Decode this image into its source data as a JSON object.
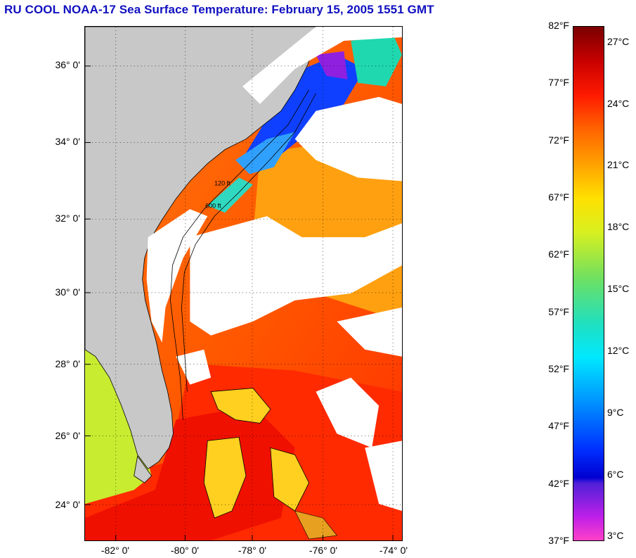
{
  "title": "RU COOL  NOAA-17  Sea Surface Temperature:  February 15, 2005 1551 GMT",
  "map": {
    "lat_range": [
      23.0,
      37.0
    ],
    "lon_range": [
      -83.0,
      -74.2
    ],
    "lat_labels": [
      {
        "value": 36,
        "text": "36° 0'"
      },
      {
        "value": 34,
        "text": "34° 0'"
      },
      {
        "value": 32,
        "text": "32° 0'"
      },
      {
        "value": 30,
        "text": "30° 0'"
      },
      {
        "value": 28,
        "text": "28° 0'"
      },
      {
        "value": 26,
        "text": "26° 0'"
      },
      {
        "value": 24,
        "text": "24° 0'"
      }
    ],
    "lon_labels": [
      {
        "value": -82,
        "text": "-82° 0'"
      },
      {
        "value": -80,
        "text": "-80° 0'"
      },
      {
        "value": -78,
        "text": "-78° 0'"
      },
      {
        "value": -76,
        "text": "-76° 0'"
      },
      {
        "value": -74,
        "text": "-74° 0'"
      }
    ],
    "land_color": "#c8c8c8",
    "cloud_color": "#ffffff",
    "grid": "dotted",
    "contour_labels": [
      "120 ft",
      "600 ft"
    ]
  },
  "colorbar": {
    "range_f": [
      37,
      82
    ],
    "fahrenheit_labels": [
      "82°F",
      "77°F",
      "72°F",
      "67°F",
      "62°F",
      "57°F",
      "52°F",
      "47°F",
      "42°F",
      "37°F"
    ],
    "celsius_labels": [
      "27°C",
      "24°C",
      "21°C",
      "18°C",
      "15°C",
      "12°C",
      "9°C",
      "6°C",
      "3°C"
    ],
    "celsius_values_f": [
      80.6,
      75.2,
      69.8,
      64.4,
      59.0,
      53.6,
      48.2,
      42.8,
      37.4
    ],
    "gradient_stops": [
      {
        "f": 82,
        "color": "#7a0000"
      },
      {
        "f": 79,
        "color": "#c80000"
      },
      {
        "f": 76,
        "color": "#ff1a00"
      },
      {
        "f": 73,
        "color": "#ff6400"
      },
      {
        "f": 70,
        "color": "#ffa000"
      },
      {
        "f": 67,
        "color": "#ffe000"
      },
      {
        "f": 64,
        "color": "#d8f020"
      },
      {
        "f": 60,
        "color": "#70e060"
      },
      {
        "f": 56,
        "color": "#20e0c0"
      },
      {
        "f": 53,
        "color": "#00e8ff"
      },
      {
        "f": 49,
        "color": "#0090ff"
      },
      {
        "f": 45,
        "color": "#0030ff"
      },
      {
        "f": 42.5,
        "color": "#0000d0"
      },
      {
        "f": 42,
        "color": "#5020d8"
      },
      {
        "f": 39,
        "color": "#c020e8"
      },
      {
        "f": 37,
        "color": "#ff40c8"
      }
    ]
  }
}
